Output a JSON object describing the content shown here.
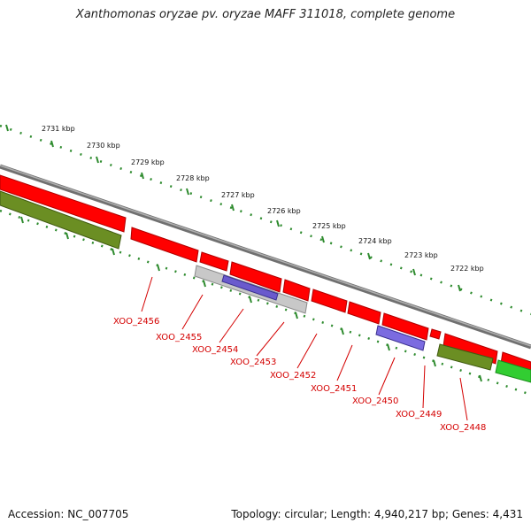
{
  "title": "Xanthomonas oryzae pv. oryzae MAFF 311018, complete genome",
  "footer": {
    "accession": "Accession: NC_007705",
    "summary": "Topology: circular; Length: 4,940,217 bp; Genes: 4,431"
  },
  "colors": {
    "forward_gene": "#ff0000",
    "reverse_gene_gray": "#c8c8c8",
    "reverse_gene_blue": "#6a5acd",
    "olive_feature": "#6b8e23",
    "green_feature": "#32cd32",
    "backbone": "#808080",
    "tick": "#2e8b2e",
    "gene_label": "#d40000"
  },
  "kbp_labels": [
    "2731 kbp",
    "2730 kbp",
    "2729 kbp",
    "2728 kbp",
    "2727 kbp",
    "2726 kbp",
    "2725 kbp",
    "2724 kbp",
    "2723 kbp",
    "2722 kbp"
  ],
  "gene_labels": [
    "XOO_2456",
    "XOO_2455",
    "XOO_2454",
    "XOO_2453",
    "XOO_2452",
    "XOO_2451",
    "XOO_2450",
    "XOO_2449",
    "XOO_2448"
  ]
}
